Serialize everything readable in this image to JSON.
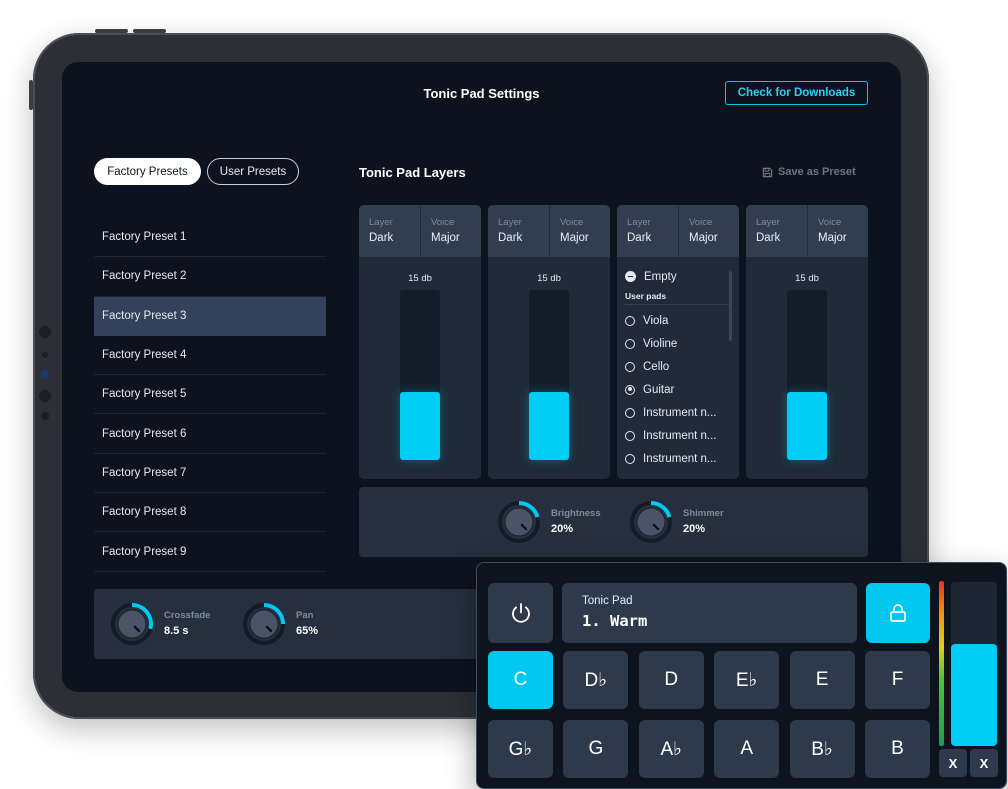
{
  "header": {
    "title": "Tonic Pad Settings",
    "check_downloads": "Check for Downloads"
  },
  "preset_tabs": [
    {
      "label": "Factory Presets",
      "active": true
    },
    {
      "label": "User Presets",
      "active": false
    }
  ],
  "presets": {
    "selected_index": 2,
    "items": [
      "Factory Preset 1",
      "Factory Preset 2",
      "Factory Preset 3",
      "Factory Preset 4",
      "Factory Preset 5",
      "Factory Preset 6",
      "Factory Preset 7",
      "Factory Preset 8",
      "Factory Preset 9"
    ]
  },
  "layers": {
    "title": "Tonic Pad Layers",
    "save_as_preset": "Save as Preset",
    "head_labels": {
      "layer": "Layer",
      "voice": "Voice"
    },
    "cards": [
      {
        "layer": "Dark",
        "voice": "Major",
        "level_label": "15 db",
        "level": 0.4
      },
      {
        "layer": "Dark",
        "voice": "Major",
        "level_label": "15 db",
        "level": 0.4
      },
      {
        "layer": "Dark",
        "voice": "Major",
        "menu_open": true
      },
      {
        "layer": "Dark",
        "voice": "Major",
        "level_label": "15 db",
        "level": 0.4
      }
    ],
    "pad_menu": {
      "empty_label": "Empty",
      "user_pads_header": "User pads",
      "options": [
        "Viola",
        "Violine",
        "Cello",
        "Guitar",
        "Instrument n...",
        "Instrument n...",
        "Instrument n..."
      ],
      "selected": "Guitar"
    }
  },
  "fx": [
    {
      "label": "Brightness",
      "value": "20%",
      "level": 0.2
    },
    {
      "label": "Shimmer",
      "value": "20%",
      "level": 0.2
    }
  ],
  "bottom_controls": [
    {
      "label": "Crossfade",
      "value": "8.5 s",
      "level": 0.35
    },
    {
      "label": "Pan",
      "value": "65%",
      "level": 0.3
    }
  ],
  "instrument": {
    "name": "Tonic Pad",
    "preset": "1. Warm",
    "volume_level": 0.62,
    "keys_row1": [
      "C",
      "D♭",
      "D",
      "E♭",
      "E",
      "F"
    ],
    "keys_row2": [
      "G♭",
      "G",
      "A♭",
      "A",
      "B♭",
      "B"
    ],
    "active_key": "C",
    "x_buttons": [
      "X",
      "X"
    ],
    "colors": {
      "accent": "#00C8F0",
      "panel": "#2E3A4C",
      "background": "#0E141E"
    },
    "icons": [
      "power-icon",
      "lock-icon"
    ]
  }
}
